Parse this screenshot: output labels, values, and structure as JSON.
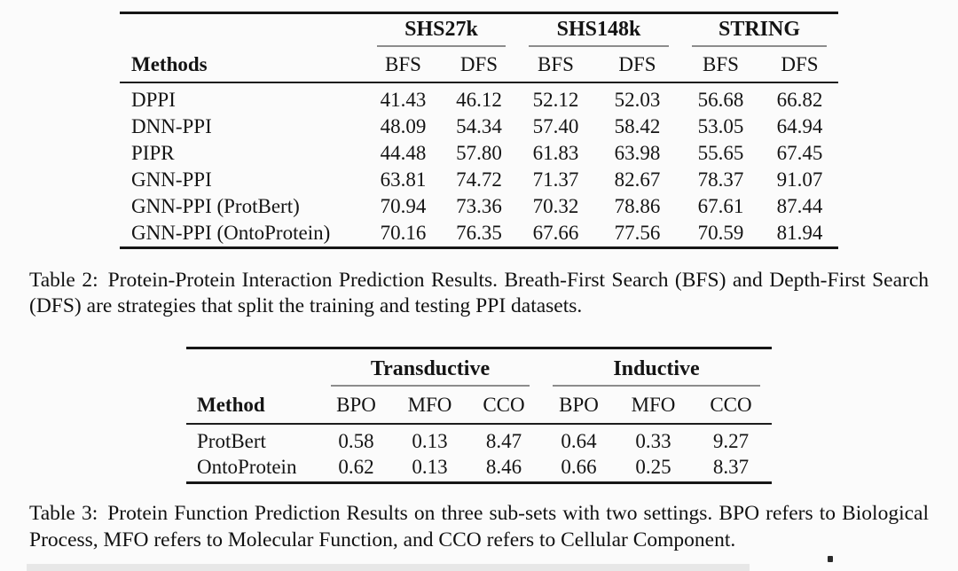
{
  "table2": {
    "groups": [
      "SHS27k",
      "SHS148k",
      "STRING"
    ],
    "method_header": "Methods",
    "sub_headers": [
      "BFS",
      "DFS",
      "BFS",
      "DFS",
      "BFS",
      "DFS"
    ],
    "rows": [
      {
        "method": "DPPI",
        "values": [
          "41.43",
          "46.12",
          "52.12",
          "52.03",
          "56.68",
          "66.82"
        ]
      },
      {
        "method": "DNN-PPI",
        "values": [
          "48.09",
          "54.34",
          "57.40",
          "58.42",
          "53.05",
          "64.94"
        ]
      },
      {
        "method": "PIPR",
        "values": [
          "44.48",
          "57.80",
          "61.83",
          "63.98",
          "55.65",
          "67.45"
        ]
      },
      {
        "method": "GNN-PPI",
        "values": [
          "63.81",
          "74.72",
          "71.37",
          "82.67",
          "78.37",
          "91.07"
        ]
      },
      {
        "method": "GNN-PPI (ProtBert)",
        "values": [
          "70.94",
          "73.36",
          "70.32",
          "78.86",
          "67.61",
          "87.44"
        ]
      },
      {
        "method": "GNN-PPI (OntoProtein)",
        "values": [
          "70.16",
          "76.35",
          "67.66",
          "77.56",
          "70.59",
          "81.94"
        ]
      }
    ],
    "caption_label": "Table 2:",
    "caption_text": "Protein-Protein Interaction Prediction Results. Breath-First Search (BFS) and Depth-First Search (DFS) are strategies that split the training and testing PPI datasets."
  },
  "table3": {
    "groups": [
      "Transductive",
      "Inductive"
    ],
    "method_header": "Method",
    "sub_headers": [
      "BPO",
      "MFO",
      "CCO",
      "BPO",
      "MFO",
      "CCO"
    ],
    "rows": [
      {
        "method": "ProtBert",
        "values": [
          "0.58",
          "0.13",
          "8.47",
          "0.64",
          "0.33",
          "9.27"
        ]
      },
      {
        "method": "OntoProtein",
        "values": [
          "0.62",
          "0.13",
          "8.46",
          "0.66",
          "0.25",
          "8.37"
        ]
      }
    ],
    "caption_label": "Table 3:",
    "caption_text": "Protein Function Prediction Results on three sub-sets with two settings.  BPO refers to Biological Process, MFO refers to Molecular Function, and CCO refers to Cellular Component."
  }
}
